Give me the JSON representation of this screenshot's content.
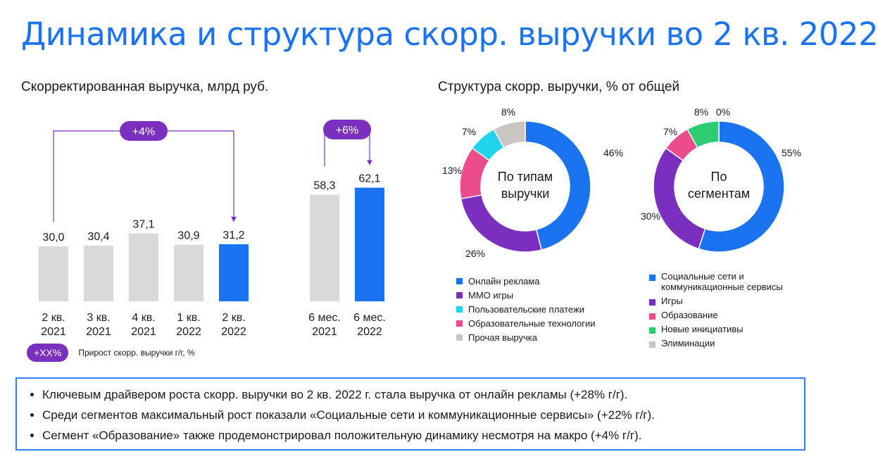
{
  "title": "Динамика и структура скорр. выручки во 2 кв. 2022",
  "left_subtitle": {
    "bold": "Скорректированная выручка,",
    "rest": " млрд руб."
  },
  "right_subtitle": {
    "bold": "Структура скорр. выручки,",
    "rest": " % от общей"
  },
  "colors": {
    "accent": "#1a73f0",
    "bar_gray": "#d9d9d9",
    "bar_blue": "#1a73f0",
    "growth": "#7b2fbe"
  },
  "chart_data": [
    {
      "type": "bar",
      "categories": [
        "2 кв.\n2021",
        "3 кв.\n2021",
        "4 кв.\n2021",
        "1 кв.\n2022",
        "2 кв.\n2022",
        "6 мес.\n2021",
        "6 мес.\n2022"
      ],
      "values": [
        30.0,
        30.4,
        37.1,
        30.9,
        31.2,
        58.3,
        62.1
      ],
      "value_labels": [
        "30,0",
        "30,4",
        "37,1",
        "30,9",
        "31,2",
        "58,3",
        "62,1"
      ],
      "highlighted": [
        false,
        false,
        false,
        false,
        true,
        false,
        true
      ],
      "growth_annotations": [
        {
          "from": "2 кв.\n2021",
          "to": "2 кв.\n2022",
          "label": "+4%"
        },
        {
          "from": "6 мес.\n2021",
          "to": "6 мес.\n2022",
          "label": "+6%"
        }
      ],
      "ylim": [
        0,
        70
      ],
      "legend_key": {
        "label": "+XX%",
        "text": "Прирост скорр. выручки г/г, %"
      }
    },
    {
      "type": "pie",
      "center_label": "По типам выручки",
      "slices": [
        {
          "label": "Онлайн реклама",
          "value": 46,
          "value_label": "46%",
          "color": "#1a73f0"
        },
        {
          "label": "MMO игры",
          "value": 26,
          "value_label": "26%",
          "color": "#7b2fbe"
        },
        {
          "label": "Пользовательские платежи",
          "value": 0,
          "value_label": "",
          "color": "#22d3ee"
        },
        {
          "label": "Образовательные технологии",
          "value": 13,
          "value_label": "13%",
          "color": "#ec4c8c"
        },
        {
          "label": "Пользовательские платежи",
          "value": 7,
          "value_label": "7%",
          "color": "#22d3ee"
        },
        {
          "label": "Прочая выручка",
          "value": 8,
          "value_label": "8%",
          "color": "#c9c5c0"
        }
      ],
      "legend": [
        {
          "label": "Онлайн реклама",
          "color": "#1a73f0"
        },
        {
          "label": "MMO игры",
          "color": "#7b2fbe"
        },
        {
          "label": "Пользовательские платежи",
          "color": "#22d3ee"
        },
        {
          "label": "Образовательные технологии",
          "color": "#ec4c8c"
        },
        {
          "label": "Прочая выручка",
          "color": "#c9c5c0"
        }
      ]
    },
    {
      "type": "pie",
      "center_label": "По сегментам",
      "slices": [
        {
          "label": "Социальные сети и коммуникационные сервисы",
          "value": 55,
          "value_label": "55%",
          "color": "#1a73f0"
        },
        {
          "label": "Игры",
          "value": 30,
          "value_label": "30%",
          "color": "#7b2fbe"
        },
        {
          "label": "Образование",
          "value": 7,
          "value_label": "7%",
          "color": "#ec4c8c"
        },
        {
          "label": "Новые инициативы",
          "value": 8,
          "value_label": "8%",
          "color": "#2ecc71"
        },
        {
          "label": "Элиминации",
          "value": 0,
          "value_label": "0%",
          "color": "#c9c5c0"
        }
      ],
      "legend": [
        {
          "label": "Социальные сети и коммуникационные сервисы",
          "color": "#1a73f0"
        },
        {
          "label": "Игры",
          "color": "#7b2fbe"
        },
        {
          "label": "Образование",
          "color": "#ec4c8c"
        },
        {
          "label": "Новые инициативы",
          "color": "#2ecc71"
        },
        {
          "label": "Элиминации",
          "color": "#c9c5c0"
        }
      ]
    }
  ],
  "bullets": [
    "Ключевым драйвером роста скорр. выручки во 2 кв. 2022 г. стала выручка от онлайн рекламы (+28% г/г).",
    "Среди сегментов максимальный рост показали «Социальные сети и коммуникационные сервисы» (+22% г/г).",
    "Сегмент «Образование» также продемонстрировал положительную динамику несмотря на макро (+4% г/г)."
  ]
}
